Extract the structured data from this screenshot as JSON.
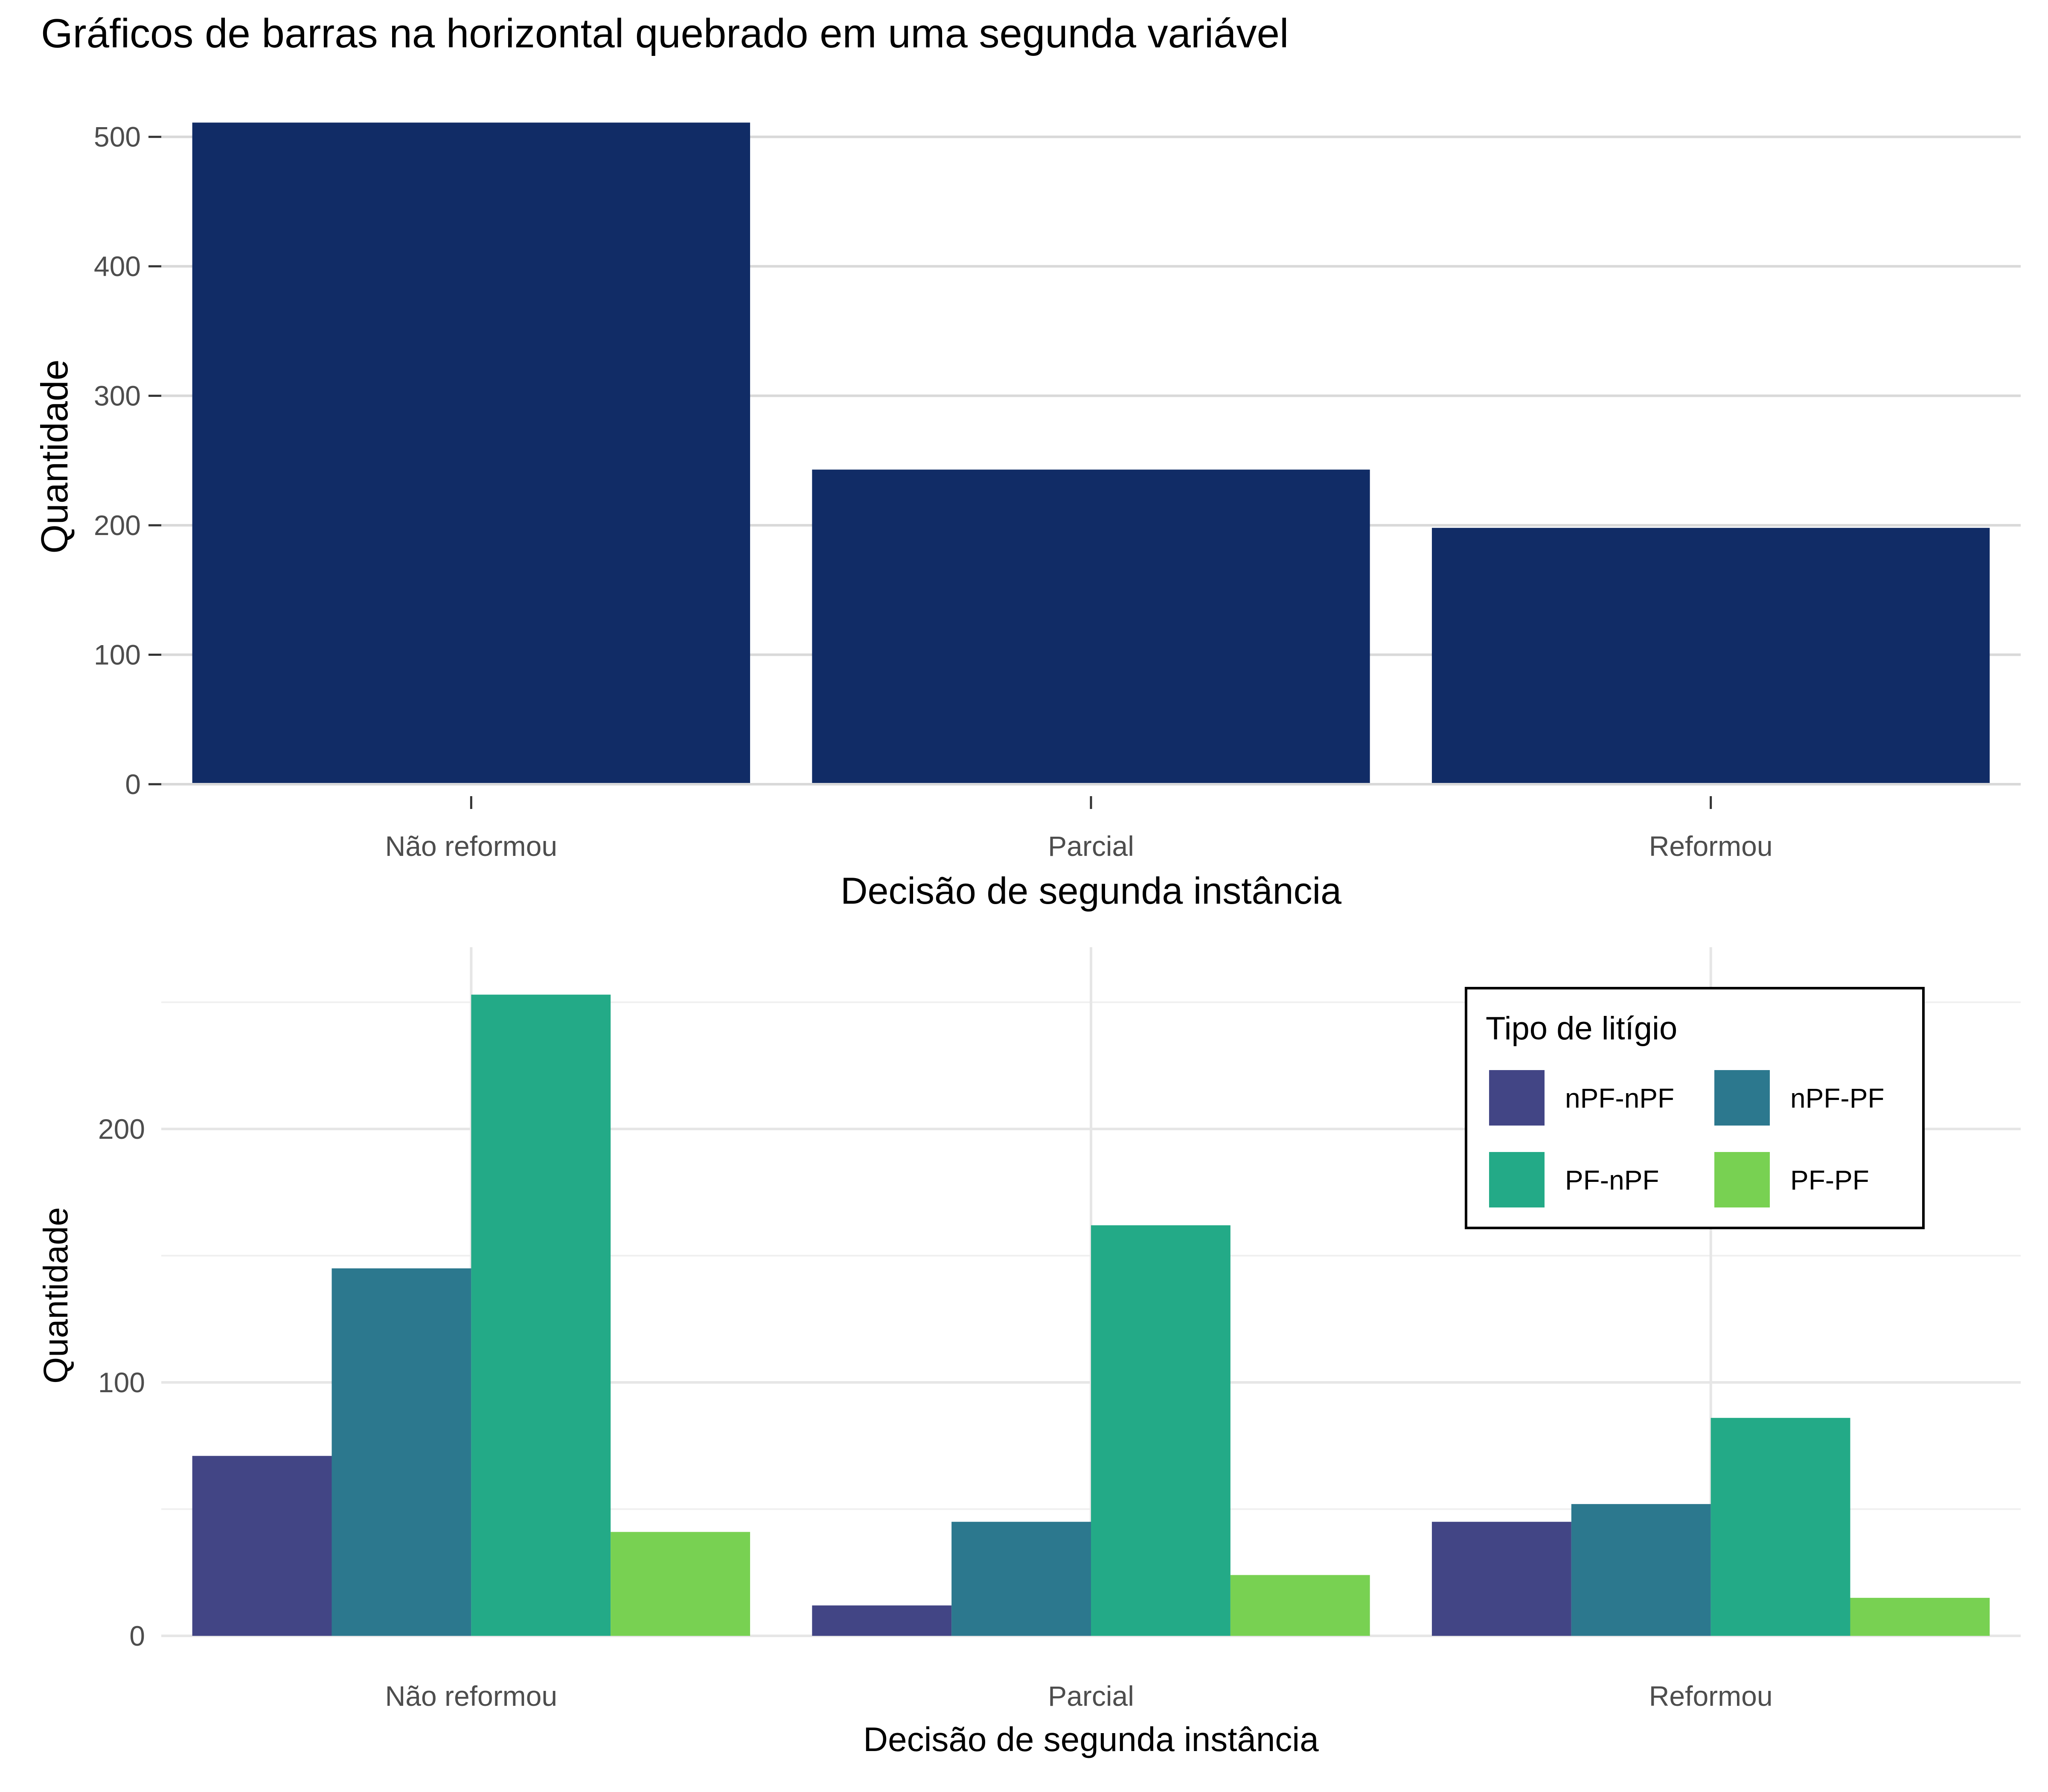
{
  "title": "Gráficos de barras na horizontal quebrado em uma segunda variável",
  "chart_data": [
    {
      "type": "bar",
      "categories": [
        "Não reformou",
        "Parcial",
        "Reformou"
      ],
      "values": [
        511,
        243,
        198
      ],
      "xlabel": "Decisão de segunda instância",
      "ylabel": "Quantidade",
      "ylim": [
        0,
        520
      ],
      "yticks": [
        0,
        100,
        200,
        300,
        400,
        500
      ],
      "bar_color": "#112C66",
      "grid": "horizontal"
    },
    {
      "type": "bar",
      "categories": [
        "Não reformou",
        "Parcial",
        "Reformou"
      ],
      "series": [
        {
          "name": "nPF-nPF",
          "color": "#424585",
          "values": [
            71,
            12,
            45
          ]
        },
        {
          "name": "nPF-PF",
          "color": "#2C788E",
          "values": [
            145,
            45,
            52
          ]
        },
        {
          "name": "PF-nPF",
          "color": "#23AA87",
          "values": [
            253,
            162,
            86
          ]
        },
        {
          "name": "PF-PF",
          "color": "#78D152",
          "values": [
            41,
            24,
            15
          ]
        }
      ],
      "xlabel": "Decisão de segunda instância",
      "ylabel": "Quantidade",
      "ylim": [
        0,
        260
      ],
      "yticks": [
        0,
        100,
        200
      ],
      "legend_title": "Tipo de litígio",
      "legend_position": "top-right",
      "grid": "both"
    }
  ]
}
